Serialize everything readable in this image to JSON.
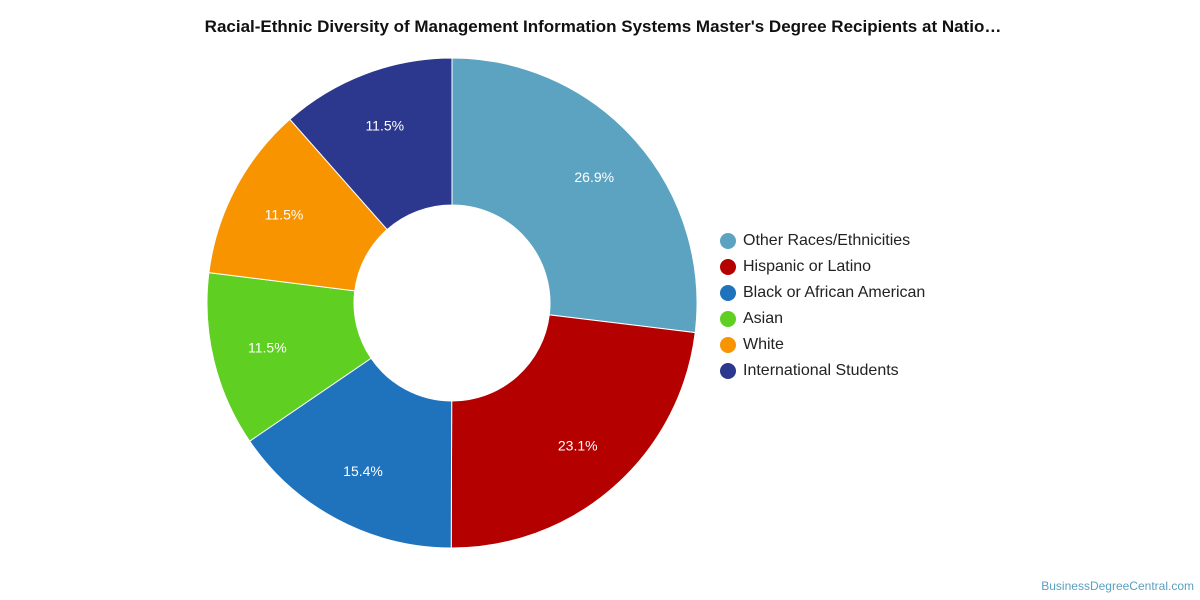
{
  "chart_data": {
    "type": "pie",
    "donut": true,
    "title": "Racial-Ethnic Diversity of Management Information Systems Master's Degree Recipients at Natio…",
    "categories": [
      "Other Races/Ethnicities",
      "Hispanic or Latino",
      "Black or African American",
      "Asian",
      "White",
      "International Students"
    ],
    "values": [
      26.9,
      23.1,
      15.4,
      11.5,
      11.5,
      11.5
    ],
    "labels": [
      "26.9%",
      "23.1%",
      "15.4%",
      "11.5%",
      "11.5%",
      "11.5%"
    ],
    "colors": [
      "#5ba3c0",
      "#b50000",
      "#1f73bd",
      "#5fcf22",
      "#f79400",
      "#2c388e"
    ],
    "legend_position": "right"
  },
  "source_text": "BusinessDegreeCentral.com"
}
